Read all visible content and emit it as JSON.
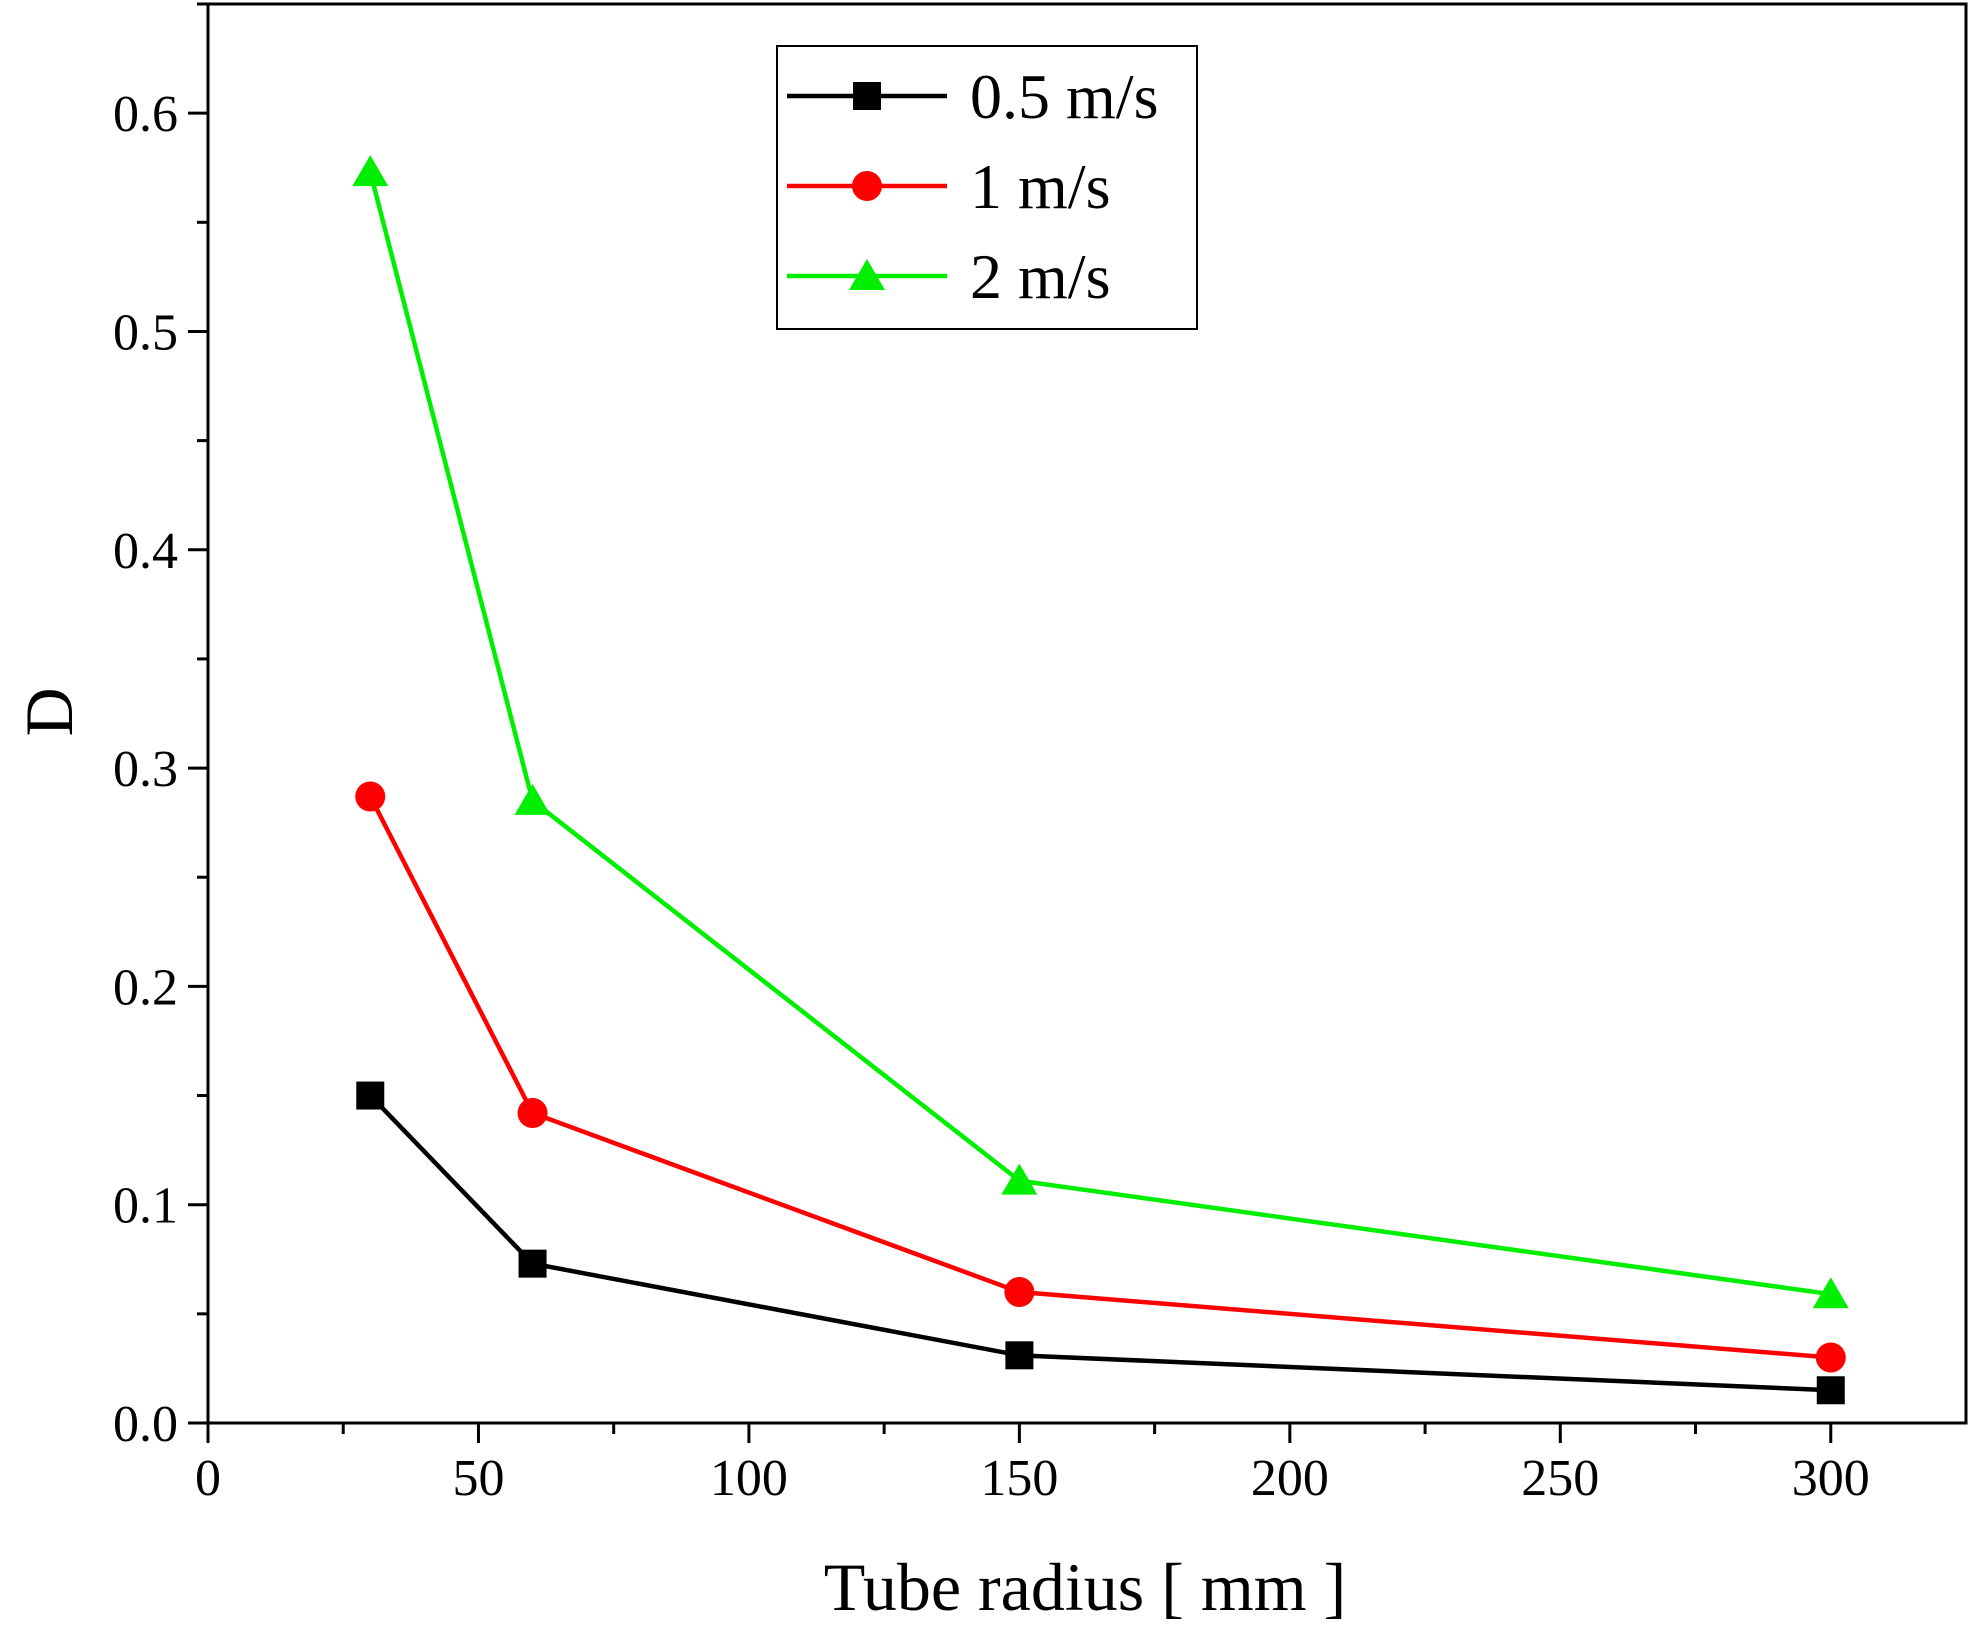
{
  "chart_data": {
    "type": "line",
    "xlabel": "Tube radius [ mm ]",
    "ylabel": "D",
    "xlim": [
      0,
      325
    ],
    "ylim": [
      0,
      0.65
    ],
    "x_ticks": [
      0,
      50,
      100,
      150,
      200,
      250,
      300
    ],
    "x_tick_labels": [
      "0",
      "50",
      "100",
      "150",
      "200",
      "250",
      "300"
    ],
    "y_ticks": [
      0.0,
      0.1,
      0.2,
      0.3,
      0.4,
      0.5,
      0.6
    ],
    "y_tick_labels": [
      "0.0",
      "0.1",
      "0.2",
      "0.3",
      "0.4",
      "0.5",
      "0.6"
    ],
    "grid": false,
    "legend_position": "top-center",
    "x": [
      30,
      60,
      150,
      300
    ],
    "series": [
      {
        "name": "0.5 m/s",
        "color": "#000000",
        "marker": "square",
        "values": [
          0.15,
          0.073,
          0.031,
          0.015
        ]
      },
      {
        "name": "1 m/s",
        "color": "#ff0000",
        "marker": "circle",
        "values": [
          0.287,
          0.142,
          0.06,
          0.03
        ]
      },
      {
        "name": "2 m/s",
        "color": "#00ee00",
        "marker": "triangle",
        "values": [
          0.573,
          0.285,
          0.111,
          0.059
        ]
      }
    ]
  }
}
